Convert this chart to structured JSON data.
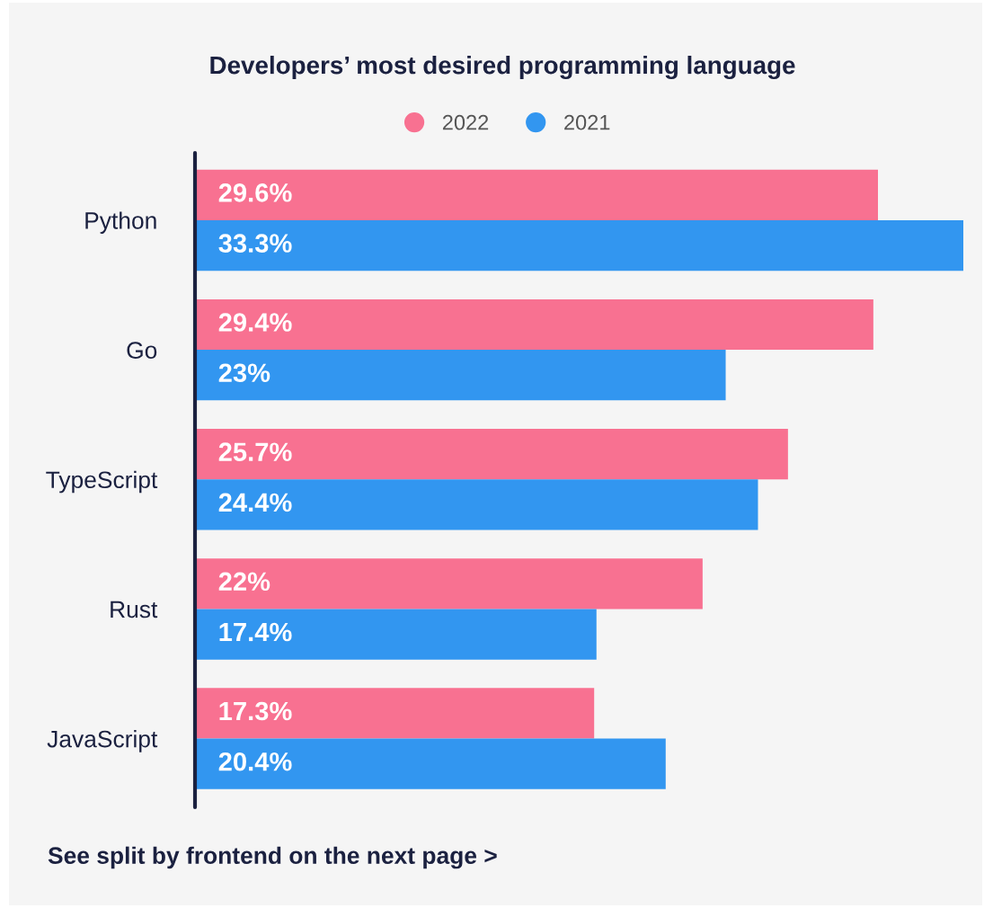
{
  "chart_data": {
    "type": "bar",
    "orientation": "horizontal",
    "title": "Developers’ most desired programming language",
    "categories": [
      "Python",
      "Go",
      "TypeScript",
      "Rust",
      "JavaScript"
    ],
    "series": [
      {
        "name": "2022",
        "color": "#f87191",
        "values": [
          29.6,
          29.4,
          25.7,
          22,
          17.3
        ],
        "value_labels": [
          "29.6%",
          "29.4%",
          "25.7%",
          "22%",
          "17.3%"
        ]
      },
      {
        "name": "2021",
        "color": "#3296f0",
        "values": [
          33.3,
          23,
          24.4,
          17.4,
          20.4
        ],
        "value_labels": [
          "33.3%",
          "23%",
          "24.4%",
          "17.4%",
          "20.4%"
        ]
      }
    ],
    "xlim": [
      0,
      33.3
    ],
    "tick_labels": "y",
    "legend": "top",
    "grid": false,
    "marker": "circle",
    "annotations": [
      "See split by frontend on the next page >"
    ]
  }
}
